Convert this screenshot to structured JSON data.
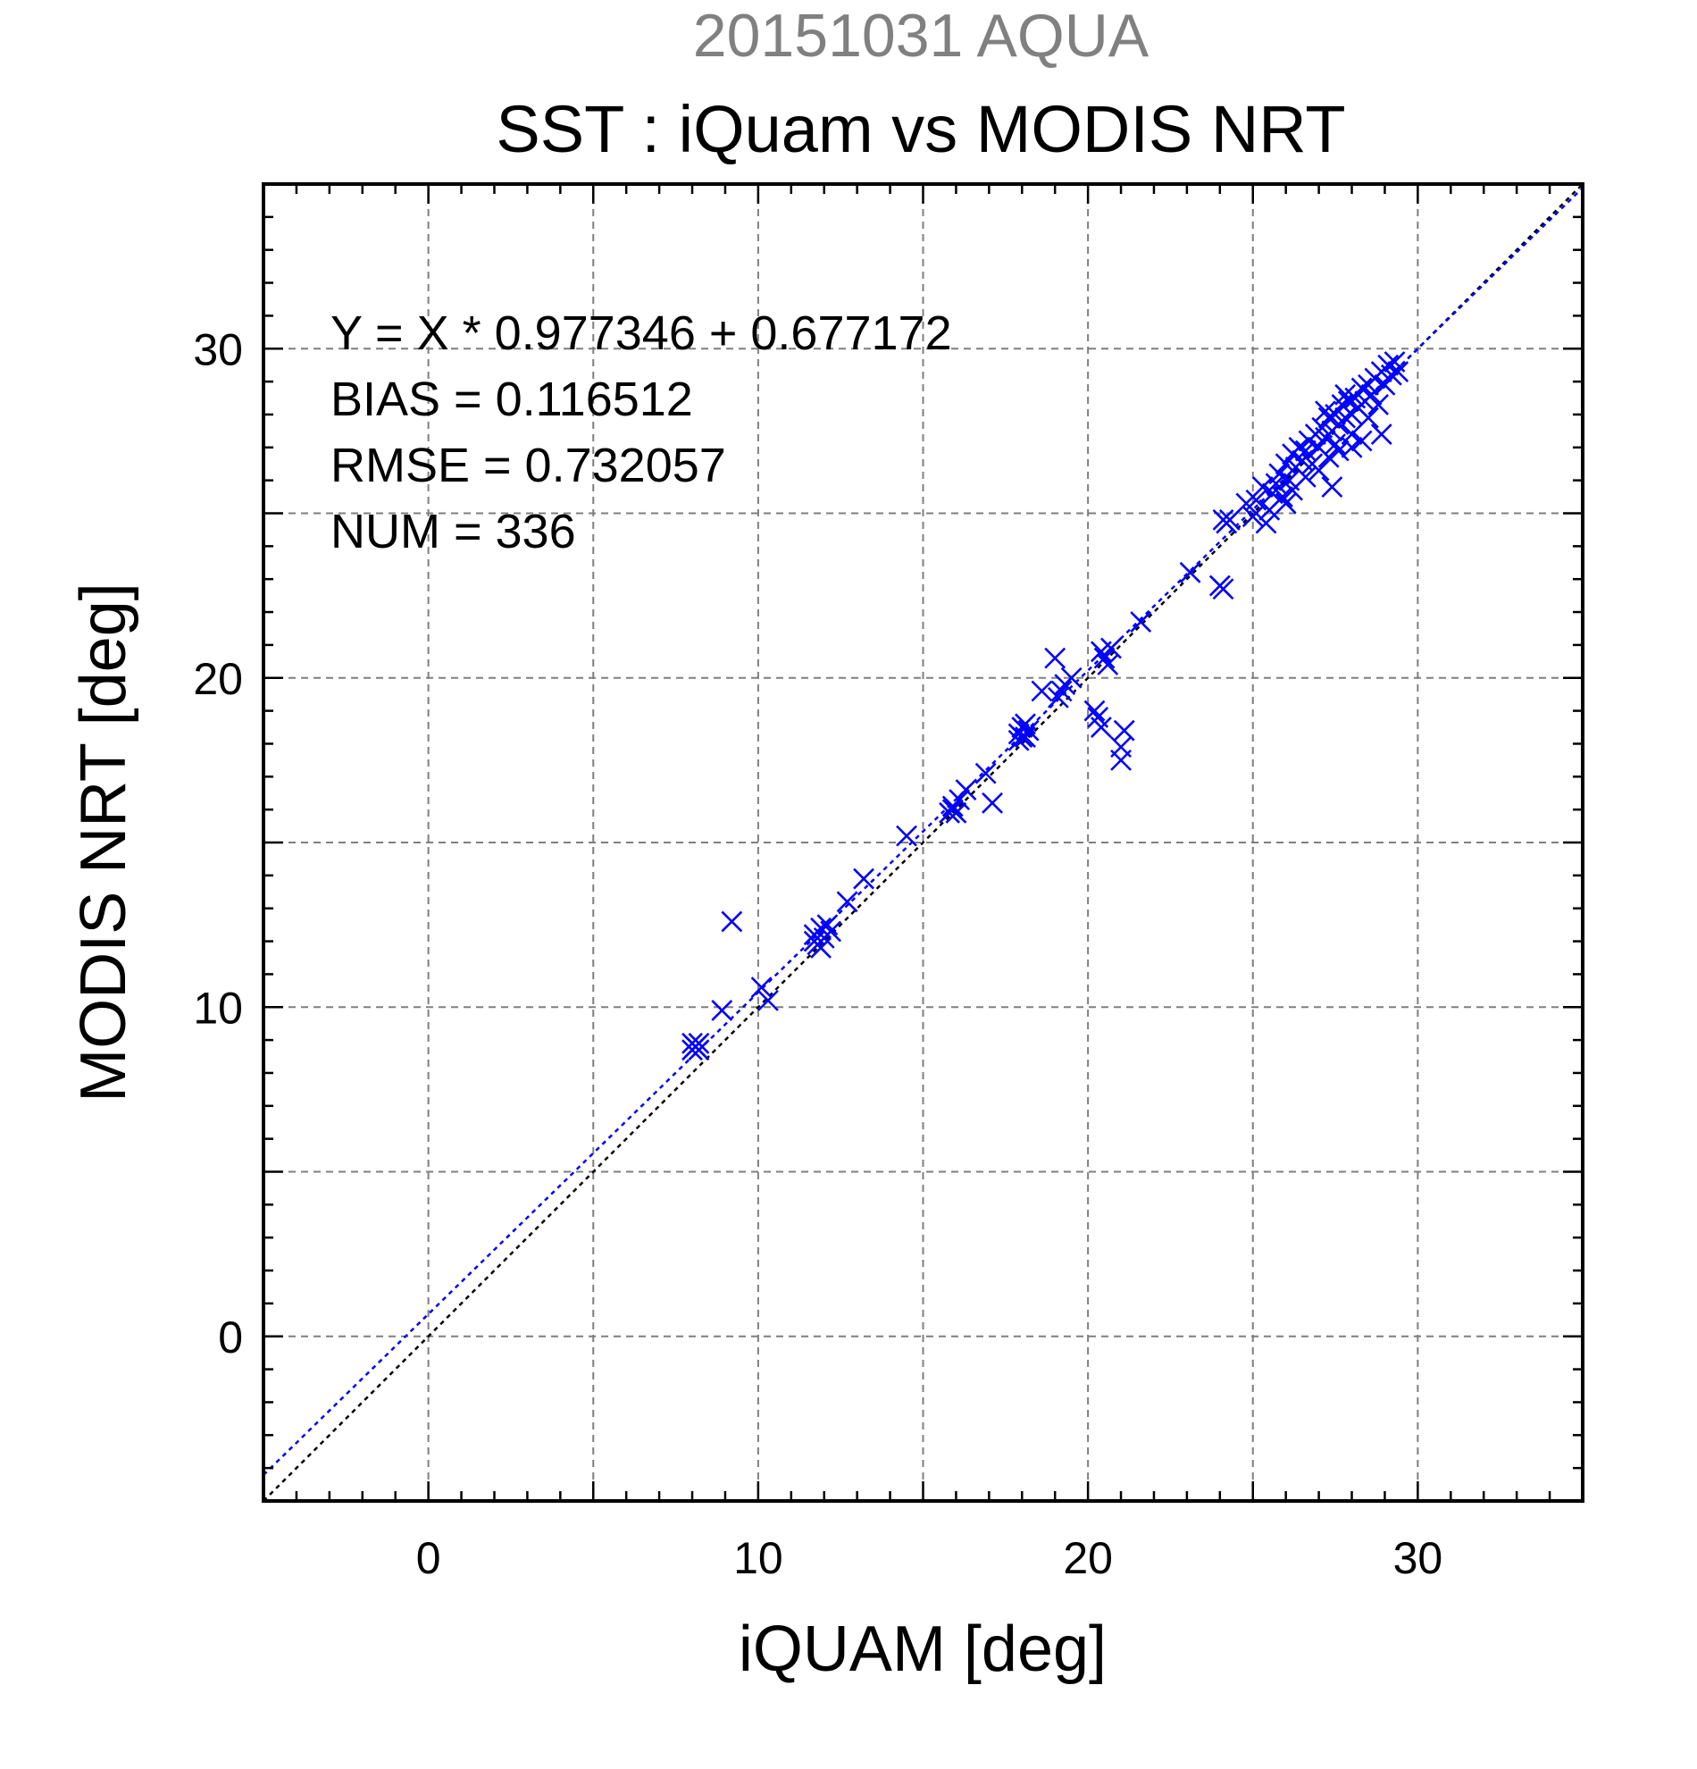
{
  "chart_data": {
    "type": "scatter",
    "title_top": "20151031 AQUA",
    "title": "SST : iQuam vs MODIS NRT",
    "xlabel": "iQUAM [deg]",
    "ylabel": "MODIS NRT [deg]",
    "xlim": [
      -5,
      35
    ],
    "ylim": [
      -5,
      35
    ],
    "x_ticks": [
      0,
      10,
      20,
      30
    ],
    "y_ticks": [
      0,
      10,
      20,
      30
    ],
    "x_tick_labels": [
      "0",
      "10",
      "20",
      "30"
    ],
    "y_tick_labels": [
      "0",
      "10",
      "20",
      "30"
    ],
    "grid_step": 5,
    "minor_tick_step": 1,
    "grid": true,
    "marker": "x",
    "marker_color": "#0000ff",
    "fit": {
      "slope": 0.977346,
      "intercept": 0.677172,
      "color": "#0000ff",
      "style": "dotted"
    },
    "reference_line": {
      "slope": 1,
      "intercept": 0,
      "color": "#000000",
      "style": "dotted"
    },
    "stats": {
      "equation": "Y = X * 0.977346 + 0.677172",
      "bias": "BIAS = 0.116512",
      "rmse": "RMSE = 0.732057",
      "num": "NUM = 336"
    },
    "series": [
      {
        "points": [
          [
            8.0,
            8.9
          ],
          [
            8.1,
            8.8
          ],
          [
            8.2,
            8.7
          ],
          [
            8.0,
            8.7
          ],
          [
            8.2,
            8.9
          ],
          [
            8.9,
            9.9
          ],
          [
            9.2,
            12.6
          ],
          [
            10.1,
            10.6
          ],
          [
            10.3,
            10.2
          ],
          [
            11.7,
            12.2
          ],
          [
            11.8,
            11.9
          ],
          [
            11.9,
            12.4
          ],
          [
            12.0,
            12.1
          ],
          [
            11.7,
            12.0
          ],
          [
            12.1,
            12.5
          ],
          [
            11.9,
            11.8
          ],
          [
            12.2,
            12.3
          ],
          [
            12.7,
            13.2
          ],
          [
            13.2,
            13.9
          ],
          [
            14.5,
            15.2
          ],
          [
            15.8,
            15.9
          ],
          [
            15.9,
            16.1
          ],
          [
            16.0,
            15.9
          ],
          [
            16.1,
            16.3
          ],
          [
            16.3,
            16.6
          ],
          [
            15.9,
            16.0
          ],
          [
            16.9,
            17.1
          ],
          [
            17.1,
            16.2
          ],
          [
            17.9,
            18.3
          ],
          [
            18.0,
            18.5
          ],
          [
            18.1,
            18.2
          ],
          [
            18.2,
            18.4
          ],
          [
            17.9,
            18.1
          ],
          [
            18.1,
            18.6
          ],
          [
            18.0,
            18.2
          ],
          [
            18.6,
            19.6
          ],
          [
            19.0,
            20.6
          ],
          [
            19.2,
            19.6
          ],
          [
            19.3,
            19.8
          ],
          [
            19.5,
            20.0
          ],
          [
            19.1,
            19.4
          ],
          [
            20.2,
            19.0
          ],
          [
            20.3,
            18.8
          ],
          [
            20.4,
            18.5
          ],
          [
            20.4,
            20.8
          ],
          [
            20.5,
            20.6
          ],
          [
            20.7,
            20.9
          ],
          [
            20.6,
            20.4
          ],
          [
            21.0,
            17.5
          ],
          [
            21.0,
            17.9
          ],
          [
            21.1,
            18.4
          ],
          [
            21.6,
            21.7
          ],
          [
            23.1,
            23.2
          ],
          [
            24.0,
            22.8
          ],
          [
            24.1,
            22.7
          ],
          [
            24.1,
            24.8
          ],
          [
            24.2,
            24.7
          ],
          [
            24.3,
            24.8
          ],
          [
            24.8,
            25.3
          ],
          [
            25.0,
            24.9
          ],
          [
            25.1,
            25.4
          ],
          [
            25.3,
            25.8
          ],
          [
            25.4,
            24.7
          ],
          [
            25.5,
            25.1
          ],
          [
            25.6,
            25.6
          ],
          [
            25.7,
            25.9
          ],
          [
            25.8,
            26.2
          ],
          [
            25.9,
            25.5
          ],
          [
            26.0,
            26.5
          ],
          [
            26.1,
            26.0
          ],
          [
            26.2,
            26.8
          ],
          [
            26.3,
            26.4
          ],
          [
            26.4,
            27.0
          ],
          [
            26.5,
            26.6
          ],
          [
            26.6,
            26.9
          ],
          [
            26.7,
            27.2
          ],
          [
            26.8,
            26.5
          ],
          [
            26.9,
            27.4
          ],
          [
            27.0,
            27.0
          ],
          [
            27.1,
            27.6
          ],
          [
            27.2,
            27.3
          ],
          [
            27.3,
            27.9
          ],
          [
            27.4,
            27.5
          ],
          [
            27.5,
            28.0
          ],
          [
            27.6,
            27.7
          ],
          [
            27.7,
            28.3
          ],
          [
            27.8,
            27.9
          ],
          [
            27.9,
            28.4
          ],
          [
            27.4,
            25.8
          ],
          [
            27.2,
            28.1
          ],
          [
            27.5,
            27.1
          ],
          [
            27.8,
            28.6
          ],
          [
            28.0,
            28.0
          ],
          [
            28.1,
            28.5
          ],
          [
            28.2,
            28.2
          ],
          [
            28.3,
            28.8
          ],
          [
            28.4,
            28.4
          ],
          [
            28.5,
            28.9
          ],
          [
            28.6,
            28.6
          ],
          [
            28.7,
            29.1
          ],
          [
            28.8,
            28.3
          ],
          [
            28.9,
            27.4
          ],
          [
            28.9,
            29.3
          ],
          [
            29.0,
            28.9
          ],
          [
            29.1,
            29.5
          ],
          [
            29.2,
            29.2
          ],
          [
            29.3,
            29.6
          ],
          [
            29.4,
            29.3
          ],
          [
            28.0,
            27.0
          ],
          [
            28.3,
            27.2
          ],
          [
            26.0,
            25.3
          ],
          [
            26.2,
            25.7
          ],
          [
            26.6,
            26.1
          ],
          [
            27.0,
            26.3
          ],
          [
            27.3,
            26.7
          ],
          [
            27.6,
            26.9
          ],
          [
            28.0,
            27.4
          ],
          [
            28.5,
            27.9
          ]
        ]
      }
    ]
  }
}
